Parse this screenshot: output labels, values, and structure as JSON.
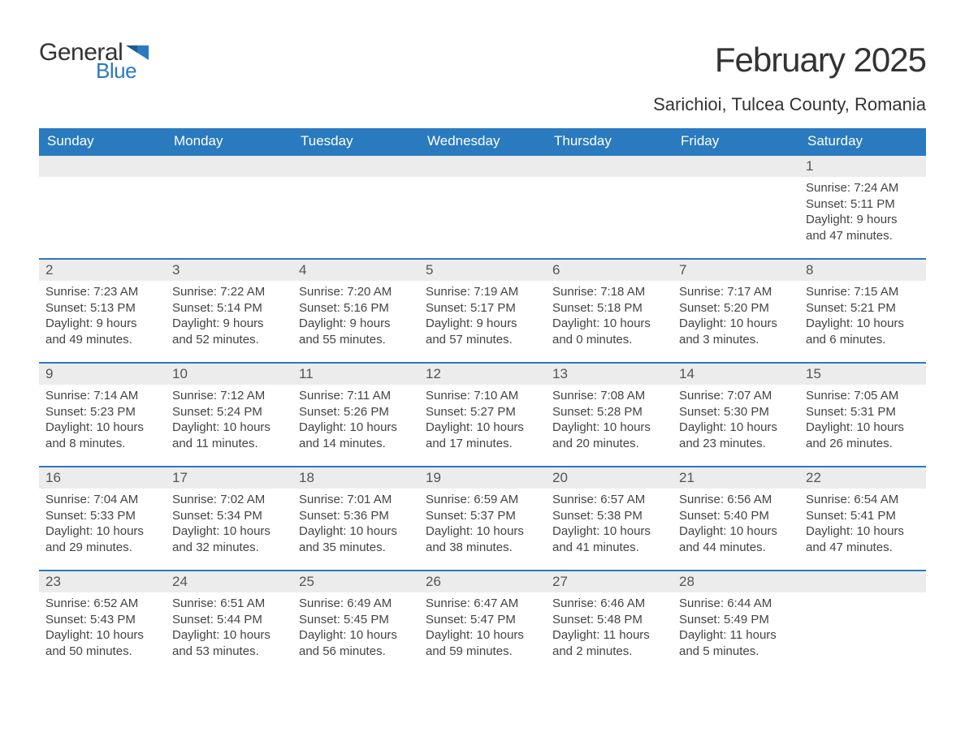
{
  "logo": {
    "general": "General",
    "blue": "Blue",
    "flag_color": "#2a7ac0"
  },
  "header": {
    "month_title": "February 2025",
    "location": "Sarichioi, Tulcea County, Romania"
  },
  "styling": {
    "header_bg": "#2a7ac0",
    "header_text": "#ffffff",
    "row_border": "#2a7ac0",
    "daynum_bg": "#ececec",
    "body_text": "#444444",
    "page_bg": "#ffffff",
    "font_family": "Arial",
    "month_title_fontsize": 42,
    "location_fontsize": 22,
    "weekday_fontsize": 17,
    "daynum_fontsize": 17,
    "cell_fontsize": 15
  },
  "weekdays": [
    "Sunday",
    "Monday",
    "Tuesday",
    "Wednesday",
    "Thursday",
    "Friday",
    "Saturday"
  ],
  "labels": {
    "sunrise": "Sunrise: ",
    "sunset": "Sunset: ",
    "daylight": "Daylight: "
  },
  "weeks": [
    [
      null,
      null,
      null,
      null,
      null,
      null,
      {
        "n": "1",
        "sunrise": "7:24 AM",
        "sunset": "5:11 PM",
        "daylight": "9 hours and 47 minutes."
      }
    ],
    [
      {
        "n": "2",
        "sunrise": "7:23 AM",
        "sunset": "5:13 PM",
        "daylight": "9 hours and 49 minutes."
      },
      {
        "n": "3",
        "sunrise": "7:22 AM",
        "sunset": "5:14 PM",
        "daylight": "9 hours and 52 minutes."
      },
      {
        "n": "4",
        "sunrise": "7:20 AM",
        "sunset": "5:16 PM",
        "daylight": "9 hours and 55 minutes."
      },
      {
        "n": "5",
        "sunrise": "7:19 AM",
        "sunset": "5:17 PM",
        "daylight": "9 hours and 57 minutes."
      },
      {
        "n": "6",
        "sunrise": "7:18 AM",
        "sunset": "5:18 PM",
        "daylight": "10 hours and 0 minutes."
      },
      {
        "n": "7",
        "sunrise": "7:17 AM",
        "sunset": "5:20 PM",
        "daylight": "10 hours and 3 minutes."
      },
      {
        "n": "8",
        "sunrise": "7:15 AM",
        "sunset": "5:21 PM",
        "daylight": "10 hours and 6 minutes."
      }
    ],
    [
      {
        "n": "9",
        "sunrise": "7:14 AM",
        "sunset": "5:23 PM",
        "daylight": "10 hours and 8 minutes."
      },
      {
        "n": "10",
        "sunrise": "7:12 AM",
        "sunset": "5:24 PM",
        "daylight": "10 hours and 11 minutes."
      },
      {
        "n": "11",
        "sunrise": "7:11 AM",
        "sunset": "5:26 PM",
        "daylight": "10 hours and 14 minutes."
      },
      {
        "n": "12",
        "sunrise": "7:10 AM",
        "sunset": "5:27 PM",
        "daylight": "10 hours and 17 minutes."
      },
      {
        "n": "13",
        "sunrise": "7:08 AM",
        "sunset": "5:28 PM",
        "daylight": "10 hours and 20 minutes."
      },
      {
        "n": "14",
        "sunrise": "7:07 AM",
        "sunset": "5:30 PM",
        "daylight": "10 hours and 23 minutes."
      },
      {
        "n": "15",
        "sunrise": "7:05 AM",
        "sunset": "5:31 PM",
        "daylight": "10 hours and 26 minutes."
      }
    ],
    [
      {
        "n": "16",
        "sunrise": "7:04 AM",
        "sunset": "5:33 PM",
        "daylight": "10 hours and 29 minutes."
      },
      {
        "n": "17",
        "sunrise": "7:02 AM",
        "sunset": "5:34 PM",
        "daylight": "10 hours and 32 minutes."
      },
      {
        "n": "18",
        "sunrise": "7:01 AM",
        "sunset": "5:36 PM",
        "daylight": "10 hours and 35 minutes."
      },
      {
        "n": "19",
        "sunrise": "6:59 AM",
        "sunset": "5:37 PM",
        "daylight": "10 hours and 38 minutes."
      },
      {
        "n": "20",
        "sunrise": "6:57 AM",
        "sunset": "5:38 PM",
        "daylight": "10 hours and 41 minutes."
      },
      {
        "n": "21",
        "sunrise": "6:56 AM",
        "sunset": "5:40 PM",
        "daylight": "10 hours and 44 minutes."
      },
      {
        "n": "22",
        "sunrise": "6:54 AM",
        "sunset": "5:41 PM",
        "daylight": "10 hours and 47 minutes."
      }
    ],
    [
      {
        "n": "23",
        "sunrise": "6:52 AM",
        "sunset": "5:43 PM",
        "daylight": "10 hours and 50 minutes."
      },
      {
        "n": "24",
        "sunrise": "6:51 AM",
        "sunset": "5:44 PM",
        "daylight": "10 hours and 53 minutes."
      },
      {
        "n": "25",
        "sunrise": "6:49 AM",
        "sunset": "5:45 PM",
        "daylight": "10 hours and 56 minutes."
      },
      {
        "n": "26",
        "sunrise": "6:47 AM",
        "sunset": "5:47 PM",
        "daylight": "10 hours and 59 minutes."
      },
      {
        "n": "27",
        "sunrise": "6:46 AM",
        "sunset": "5:48 PM",
        "daylight": "11 hours and 2 minutes."
      },
      {
        "n": "28",
        "sunrise": "6:44 AM",
        "sunset": "5:49 PM",
        "daylight": "11 hours and 5 minutes."
      },
      null
    ]
  ]
}
